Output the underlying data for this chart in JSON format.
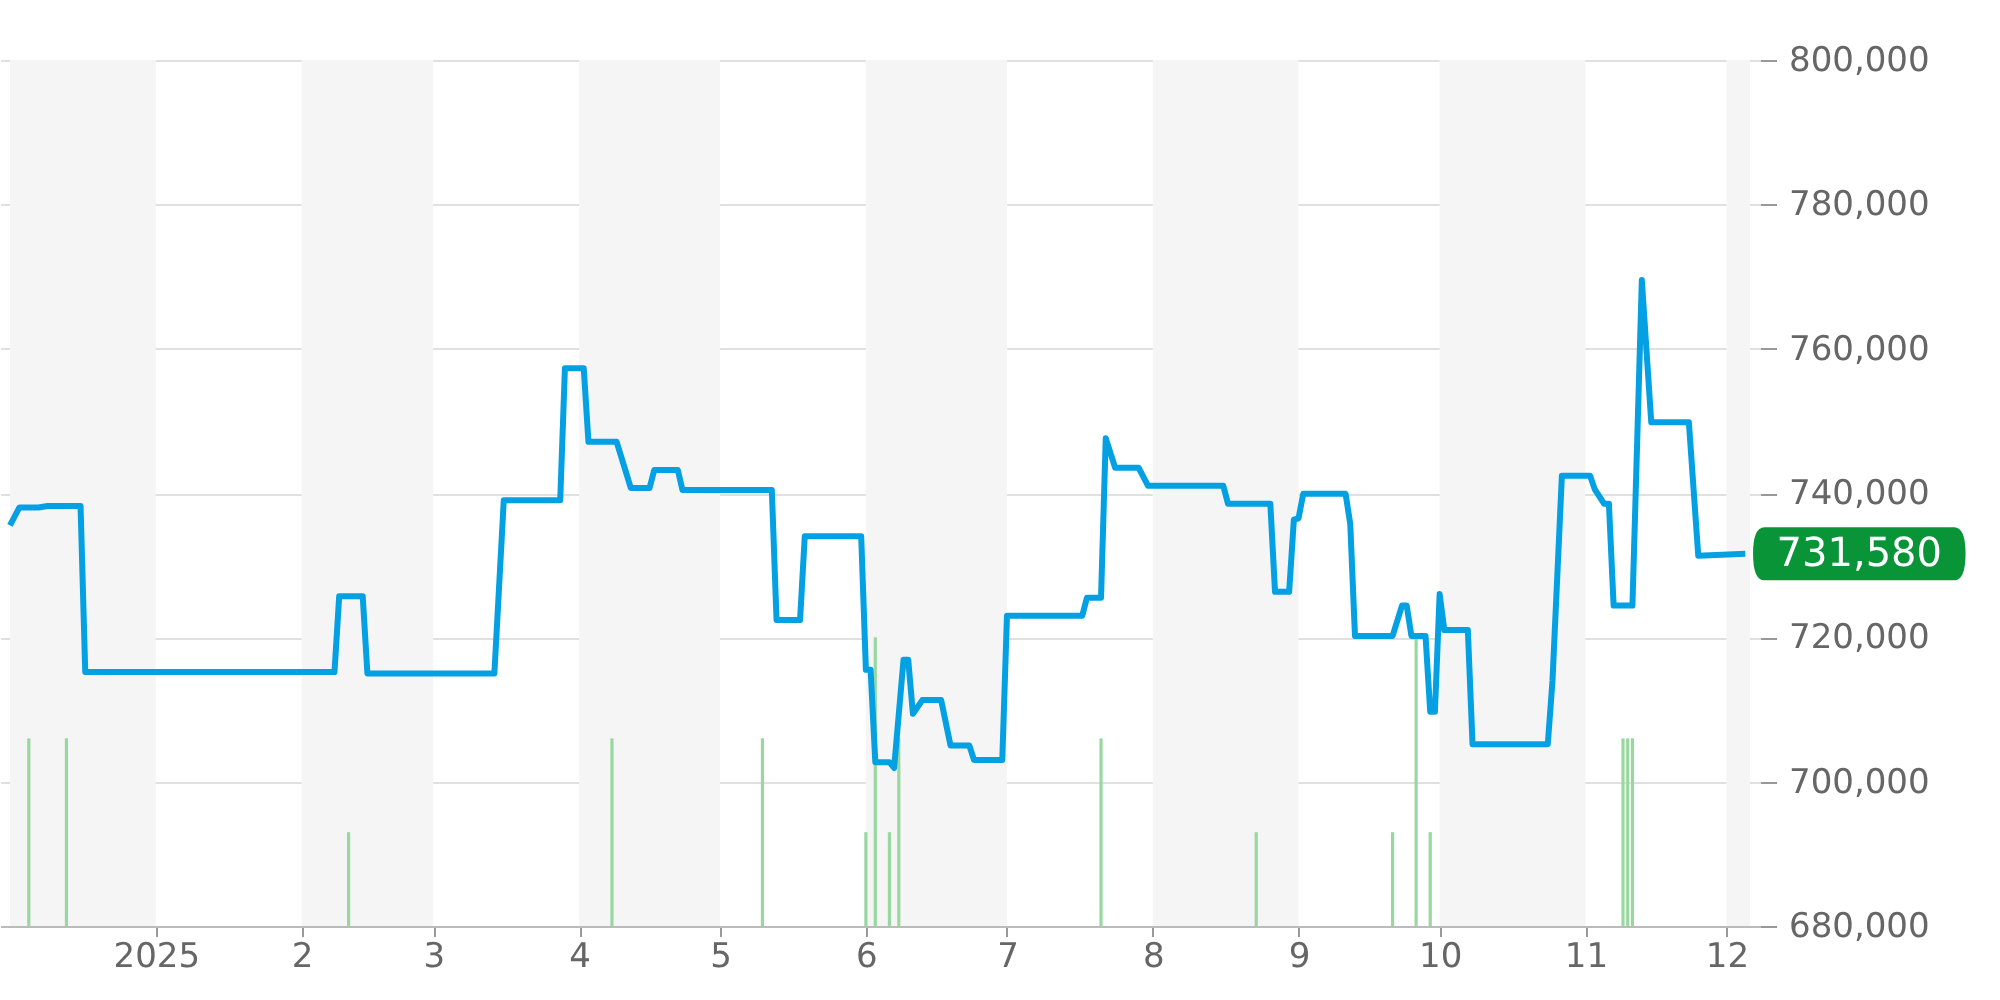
{
  "chart_data": {
    "type": "line",
    "xlim": [
      "2024-12-01",
      "2025-12-06"
    ],
    "xticks": [
      {
        "value": "2025-01-01",
        "label": "2025"
      },
      {
        "value": "2025-02-01",
        "label": "2"
      },
      {
        "value": "2025-03-01",
        "label": "3"
      },
      {
        "value": "2025-04-01",
        "label": "4"
      },
      {
        "value": "2025-05-01",
        "label": "5"
      },
      {
        "value": "2025-06-01",
        "label": "6"
      },
      {
        "value": "2025-07-01",
        "label": "7"
      },
      {
        "value": "2025-08-01",
        "label": "8"
      },
      {
        "value": "2025-09-01",
        "label": "9"
      },
      {
        "value": "2025-10-01",
        "label": "10"
      },
      {
        "value": "2025-11-01",
        "label": "11"
      },
      {
        "value": "2025-12-01",
        "label": "12"
      }
    ],
    "ylim": [
      680000,
      800000
    ],
    "yticks": [
      {
        "value": 680000,
        "label": "680,000"
      },
      {
        "value": 700000,
        "label": "700,000"
      },
      {
        "value": 720000,
        "label": "720,000"
      },
      {
        "value": 740000,
        "label": "740,000"
      },
      {
        "value": 760000,
        "label": "760,000"
      },
      {
        "value": 780000,
        "label": "780,000"
      },
      {
        "value": 800000,
        "label": "800,000"
      }
    ],
    "grid": "y",
    "marker": "none",
    "line_style": "solid",
    "bands": [
      {
        "axis": "x",
        "from": "2024-12-01",
        "to": "2025-01-01",
        "color": "#f5f5f5"
      },
      {
        "axis": "x",
        "from": "2025-02-01",
        "to": "2025-03-01",
        "color": "#f5f5f5"
      },
      {
        "axis": "x",
        "from": "2025-04-01",
        "to": "2025-05-01",
        "color": "#f5f5f5"
      },
      {
        "axis": "x",
        "from": "2025-06-01",
        "to": "2025-07-01",
        "color": "#f5f5f5"
      },
      {
        "axis": "x",
        "from": "2025-08-01",
        "to": "2025-09-01",
        "color": "#f5f5f5"
      },
      {
        "axis": "x",
        "from": "2025-10-01",
        "to": "2025-11-01",
        "color": "#f5f5f5"
      },
      {
        "axis": "x",
        "from": "2025-12-01",
        "to": "2025-12-06",
        "color": "#f5f5f5"
      }
    ],
    "annotations": [
      {
        "text": "731,580",
        "x": "2025-12-05",
        "y": 731580
      }
    ],
    "series": [
      {
        "type": "bar",
        "color": "#98d8a0",
        "x": [
          "2024-12-05",
          "2024-12-13",
          "2025-02-11",
          "2025-04-08",
          "2025-05-10",
          "2025-06-01",
          "2025-06-03",
          "2025-06-06",
          "2025-06-08",
          "2025-07-21",
          "2025-08-23",
          "2025-09-21",
          "2025-09-26",
          "2025-09-29",
          "2025-10-24",
          "2025-11-09",
          "2025-11-10",
          "2025-11-11"
        ],
        "base": [
          680000,
          680000,
          680000,
          680000,
          680000,
          680000,
          680000,
          680000,
          680000,
          680000,
          680000,
          680000,
          680000,
          680000,
          null,
          680000,
          680000,
          680000
        ],
        "values": [
          26000,
          26000,
          13000,
          26000,
          26000,
          13000,
          40000,
          13000,
          26000,
          26000,
          13000,
          13000,
          40000,
          13000,
          null,
          26000,
          26000,
          26000
        ]
      },
      {
        "color": "#03a0e3",
        "x": [
          "2024-12-01",
          "2024-12-03",
          "2024-12-07",
          "2024-12-09",
          "2024-12-16",
          "2024-12-17",
          "2025-02-08",
          "2025-02-09",
          "2025-02-14",
          "2025-02-15",
          "2025-03-14",
          "2025-03-16",
          "2025-03-28",
          "2025-03-29",
          "2025-04-02",
          "2025-04-03",
          "2025-04-09",
          "2025-04-12",
          "2025-04-16",
          "2025-04-17",
          "2025-04-22",
          "2025-04-23",
          "2025-05-12",
          "2025-05-13",
          "2025-05-18",
          "2025-05-19",
          "2025-05-31",
          "2025-06-01",
          "2025-06-02",
          "2025-06-03",
          "2025-06-06",
          "2025-06-07",
          "2025-06-09",
          "2025-06-10",
          "2025-06-11",
          "2025-06-13",
          "2025-06-17",
          "2025-06-19",
          "2025-06-23",
          "2025-06-24",
          "2025-06-30",
          "2025-07-01",
          "2025-07-17",
          "2025-07-18",
          "2025-07-21",
          "2025-07-22",
          "2025-07-24",
          "2025-07-29",
          "2025-07-31",
          "2025-08-16",
          "2025-08-17",
          "2025-08-26",
          "2025-08-27",
          "2025-08-30",
          "2025-08-31",
          "2025-09-01",
          "2025-09-02",
          "2025-09-11",
          "2025-09-12",
          "2025-09-13",
          "2025-09-21",
          "2025-09-23",
          "2025-09-24",
          "2025-09-25",
          "2025-09-28",
          "2025-09-29",
          "2025-09-30",
          "2025-10-01",
          "2025-10-02",
          "2025-10-07",
          "2025-10-08",
          "2025-10-24",
          "2025-10-25",
          "2025-10-27",
          "2025-11-02",
          "2025-11-03",
          "2025-11-05",
          "2025-11-06",
          "2025-11-07",
          "2025-11-11",
          "2025-11-13",
          "2025-11-15",
          "2025-11-23",
          "2025-11-25",
          "2025-12-05"
        ],
        "values": [
          735500,
          738000,
          738000,
          738200,
          738200,
          715200,
          715200,
          725700,
          725700,
          715000,
          715000,
          739000,
          739000,
          757300,
          757300,
          747100,
          747100,
          740700,
          740700,
          743200,
          743200,
          740400,
          740400,
          722400,
          722400,
          734000,
          734000,
          715500,
          715500,
          702700,
          702700,
          701900,
          716900,
          716900,
          709400,
          711300,
          711300,
          705000,
          705000,
          703000,
          703000,
          723000,
          723000,
          725500,
          725500,
          747600,
          743500,
          743500,
          741000,
          741000,
          738500,
          738500,
          726300,
          726300,
          736300,
          736500,
          739900,
          739900,
          735700,
          720200,
          720200,
          724400,
          724400,
          720200,
          720200,
          709700,
          709700,
          726000,
          721000,
          721000,
          705200,
          705200,
          714000,
          742400,
          742400,
          740500,
          738500,
          738500,
          724400,
          724400,
          769500,
          749800,
          749800,
          731300,
          731580
        ]
      }
    ]
  }
}
